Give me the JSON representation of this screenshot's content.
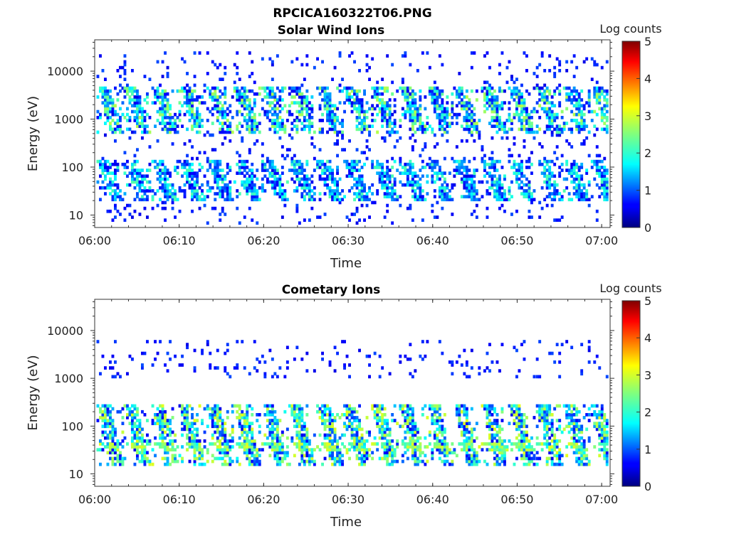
{
  "figure_title": "RPCICA160322T06.PNG",
  "chart_data": [
    {
      "type": "heatmap",
      "title": "Solar Wind Ions",
      "xlabel": "Time",
      "ylabel": "Energy (eV)",
      "x_ticks": [
        "06:00",
        "06:10",
        "06:20",
        "06:30",
        "06:40",
        "06:50",
        "07:00"
      ],
      "x_range": [
        "06:00",
        "07:01"
      ],
      "y_scale": "log",
      "y_ticks": [
        "10",
        "100",
        "1000",
        "10000"
      ],
      "y_range": [
        5.5,
        45000
      ],
      "colorbar": {
        "label": "Log counts",
        "range": [
          0,
          5
        ],
        "ticks": [
          "0",
          "1",
          "2",
          "3",
          "4",
          "5"
        ]
      },
      "sweep_minutes": [
        0.8,
        4.0,
        7.3,
        10.5,
        13.8,
        17.0,
        20.3,
        23.5,
        26.8,
        30.0,
        33.3,
        36.6,
        39.8,
        43.0,
        46.3,
        49.5,
        52.8,
        56.0,
        59.3
      ],
      "features": [
        {
          "energy_range_eV": [
            500,
            5000
          ],
          "log_counts": [
            0.5,
            2.8
          ]
        },
        {
          "energy_range_eV": [
            20,
            150
          ],
          "log_counts": [
            0.5,
            2.3
          ]
        },
        {
          "energy_range_eV": [
            6,
            25000
          ],
          "log_counts": [
            0.5,
            1.0
          ],
          "note": "sparse"
        }
      ]
    },
    {
      "type": "heatmap",
      "title": "Cometary Ions",
      "xlabel": "Time",
      "ylabel": "Energy (eV)",
      "x_ticks": [
        "06:00",
        "06:10",
        "06:20",
        "06:30",
        "06:40",
        "06:50",
        "07:00"
      ],
      "x_range": [
        "06:00",
        "07:01"
      ],
      "y_scale": "log",
      "y_ticks": [
        "10",
        "100",
        "1000",
        "10000"
      ],
      "y_range": [
        5.5,
        45000
      ],
      "colorbar": {
        "label": "Log counts",
        "range": [
          0,
          5
        ],
        "ticks": [
          "0",
          "1",
          "2",
          "3",
          "4",
          "5"
        ]
      },
      "sweep_minutes": [
        0.8,
        4.0,
        7.3,
        10.5,
        13.8,
        17.0,
        20.3,
        23.5,
        26.8,
        30.0,
        33.3,
        36.6,
        39.8,
        43.0,
        46.3,
        49.5,
        52.8,
        56.0,
        59.3
      ],
      "features": [
        {
          "energy_range_eV": [
            15,
            300
          ],
          "log_counts": [
            0.5,
            3.0
          ]
        },
        {
          "energy_range_eV": [
            30,
            45
          ],
          "log_counts": [
            2.0,
            3.0
          ]
        },
        {
          "energy_range_eV": [
            1000,
            6000
          ],
          "log_counts": [
            0.5,
            1.0
          ],
          "note": "sparse"
        }
      ]
    }
  ]
}
